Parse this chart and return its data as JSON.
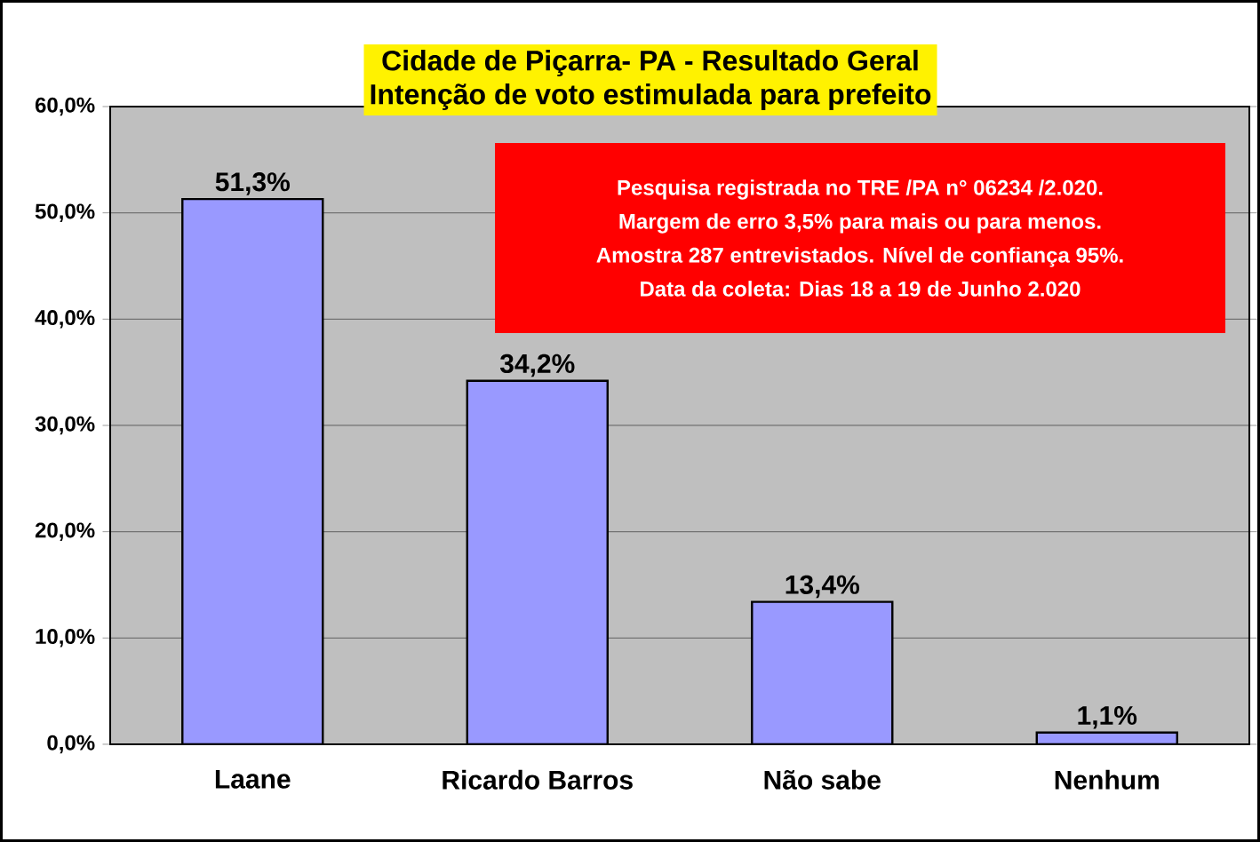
{
  "chart_data": {
    "type": "bar",
    "title": "Cidade de Piçarra- PA - Resultado Geral",
    "subtitle": "Intenção de voto estimulada para prefeito",
    "categories": [
      "Laane",
      "Ricardo Barros",
      "Não sabe",
      "Nenhum"
    ],
    "values": [
      51.3,
      34.2,
      13.4,
      1.1
    ],
    "value_labels": [
      "51,3%",
      "34,2%",
      "13,4%",
      "1,1%"
    ],
    "color": "#9999ff",
    "ylim": [
      0,
      60
    ],
    "yticks": [
      {
        "value": 0,
        "label": "0,0%"
      },
      {
        "value": 10,
        "label": "10,0%"
      },
      {
        "value": 20,
        "label": "20,0%"
      },
      {
        "value": 30,
        "label": "30,0%"
      },
      {
        "value": 40,
        "label": "40,0%"
      },
      {
        "value": 50,
        "label": "50,0%"
      },
      {
        "value": 60,
        "label": "60,0%"
      }
    ],
    "grid": "y",
    "annotations": [
      "Pesquisa  registrada  no TRE /PA n° 06234 /2.020.",
      "Margem de erro 3,5% para   mais ou para menos.",
      "Amostra 287 entrevistados.  Nível de confiança 95%.",
      "Data da coleta: Dias 18 a 19 de Junho 2.020"
    ]
  }
}
